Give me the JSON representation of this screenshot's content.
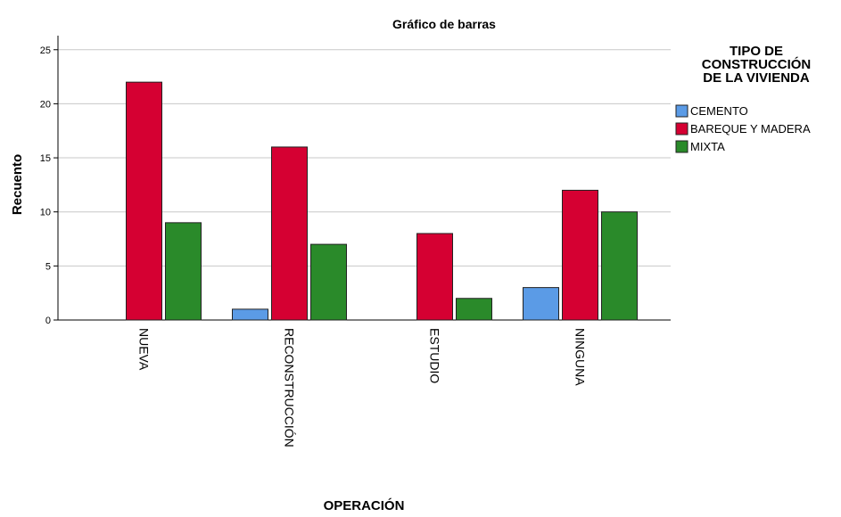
{
  "chart_data": {
    "type": "bar",
    "title": "Gráfico de barras",
    "x_label": "OPERACIÓN",
    "y_label": "Recuento",
    "legend_title": [
      "TIPO DE",
      "CONSTRUCCIÓN",
      "DE LA VIVIENDA"
    ],
    "categories": [
      "NUEVA",
      "RECONSTRUCCIÓN",
      "ESTUDIO",
      "NINGUNA"
    ],
    "series": [
      {
        "name": "CEMENTO",
        "color": "#5b9be6",
        "values": [
          0,
          1,
          0,
          3
        ]
      },
      {
        "name": "BAREQUE Y MADERA",
        "color": "#d50032",
        "values": [
          22,
          16,
          8,
          12
        ]
      },
      {
        "name": "MIXTA",
        "color": "#2a8a2a",
        "values": [
          9,
          7,
          2,
          10
        ]
      }
    ],
    "ylim": [
      0,
      26.3
    ],
    "yticks": [
      0,
      5,
      10,
      15,
      20,
      25
    ],
    "grid": true,
    "legend": "right"
  }
}
